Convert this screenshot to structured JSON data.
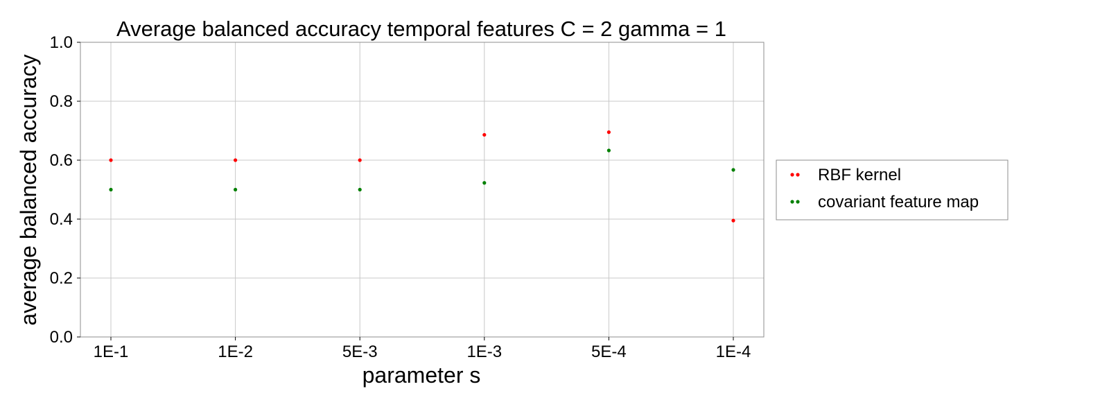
{
  "chart_data": {
    "type": "scatter",
    "title": "Average balanced accuracy temporal features C = 2 gamma = 1",
    "xlabel": "parameter s",
    "ylabel": "average balanced accuracy",
    "categories": [
      "1E-1",
      "1E-2",
      "5E-3",
      "1E-3",
      "5E-4",
      "1E-4"
    ],
    "ylim": [
      0,
      1.0
    ],
    "yticks": [
      "0.0",
      "0.2",
      "0.4",
      "0.6",
      "0.8",
      "1.0"
    ],
    "grid": true,
    "legend_position": "right",
    "series": [
      {
        "name": "RBF kernel",
        "color": "#ff0000",
        "values": [
          0.6,
          0.6,
          0.6,
          0.686,
          0.695,
          0.395
        ]
      },
      {
        "name": "covariant feature map",
        "color": "#008000",
        "values": [
          0.5,
          0.5,
          0.5,
          0.523,
          0.633,
          0.567
        ]
      }
    ]
  }
}
